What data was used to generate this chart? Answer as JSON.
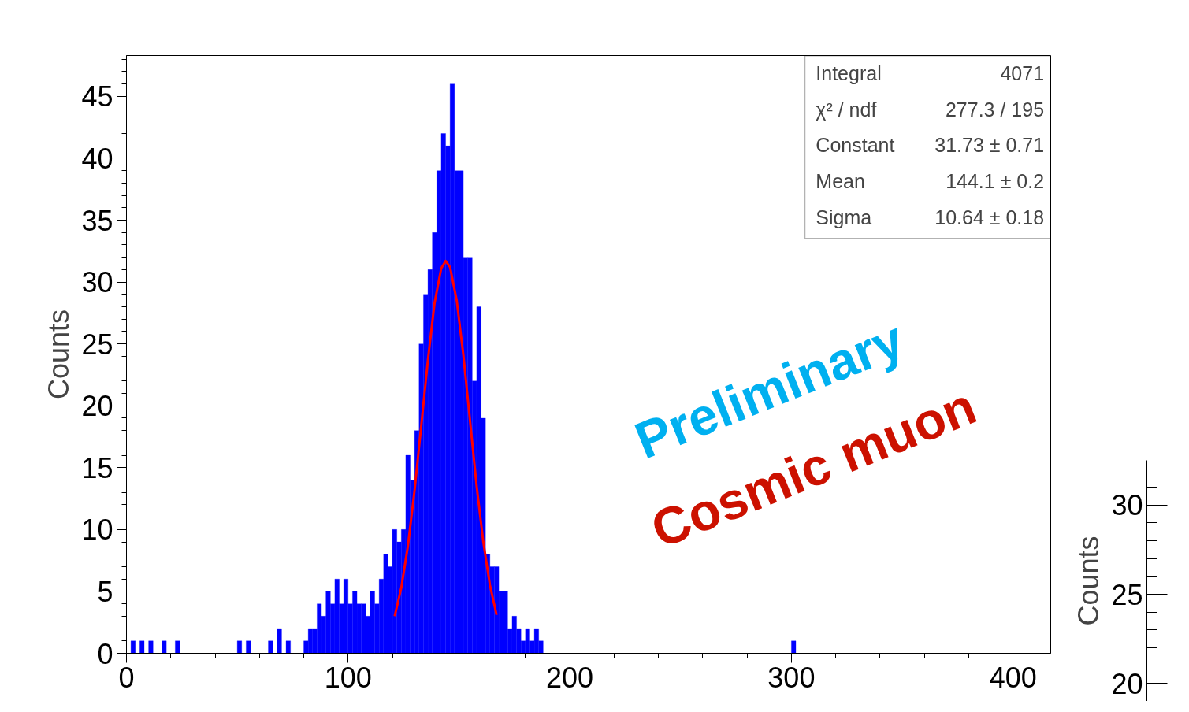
{
  "chart_data": [
    {
      "type": "histogram",
      "ylabel": "Counts",
      "xlim": [
        0,
        417
      ],
      "xticks": [
        0,
        100,
        200,
        300,
        400
      ],
      "ylim": [
        0,
        48.3
      ],
      "yticks": [
        0,
        5,
        10,
        15,
        20,
        25,
        30,
        35,
        40,
        45
      ],
      "grid": false,
      "bins": [
        0,
        2,
        4,
        6,
        8,
        10,
        12,
        14,
        16,
        18,
        20,
        22,
        24,
        26,
        28,
        30,
        32,
        34,
        36,
        38,
        40,
        42,
        44,
        46,
        48,
        50,
        52,
        54,
        56,
        58,
        60,
        62,
        64,
        66,
        68,
        70,
        72,
        74,
        76,
        78,
        80,
        82,
        84,
        86,
        88,
        90,
        92,
        94,
        96,
        98,
        100,
        102,
        104,
        106,
        108,
        110,
        112,
        114,
        116,
        118,
        120,
        122,
        124,
        126,
        128,
        130,
        132,
        134,
        136,
        138,
        140,
        142,
        144,
        146,
        148,
        150,
        152,
        154,
        156,
        158,
        160,
        162,
        164,
        166,
        168,
        170,
        172,
        174,
        176,
        178,
        180,
        182,
        184,
        186,
        188,
        190,
        192,
        194,
        196,
        198,
        200,
        202,
        204,
        206,
        208,
        210,
        212,
        214,
        216,
        218,
        220,
        222,
        224,
        226,
        228,
        230,
        232,
        234,
        236,
        238,
        240,
        242,
        244,
        246,
        248,
        250,
        252,
        254,
        256,
        258,
        260,
        262,
        264,
        266,
        268,
        270,
        272,
        274,
        276,
        278,
        280,
        282,
        284,
        286,
        288,
        290,
        292,
        294,
        296,
        298,
        300,
        302
      ],
      "values": [
        0,
        1,
        0,
        1,
        0,
        1,
        0,
        0,
        1,
        0,
        0,
        1,
        0,
        0,
        0,
        0,
        0,
        0,
        0,
        0,
        0,
        0,
        0,
        0,
        0,
        1,
        0,
        1,
        0,
        0,
        0,
        0,
        1,
        0,
        2,
        0,
        1,
        0,
        0,
        0,
        1,
        2,
        2,
        4,
        3,
        5,
        4,
        6,
        4,
        6,
        4,
        5,
        4,
        4,
        3,
        5,
        4,
        6,
        8,
        7,
        10,
        9,
        10,
        16,
        14,
        18,
        25,
        29,
        31,
        34,
        39,
        42,
        41,
        46,
        39,
        39,
        32,
        32,
        22,
        28,
        19,
        8,
        7,
        7,
        5,
        5,
        2,
        3,
        2,
        1,
        2,
        1,
        2,
        1,
        0,
        0,
        0,
        0,
        0,
        0,
        0,
        0,
        0,
        0,
        0,
        0,
        0,
        0,
        0,
        0,
        0,
        0,
        0,
        0,
        0,
        0,
        0,
        0,
        0,
        0,
        0,
        0,
        0,
        0,
        0,
        0,
        0,
        0,
        0,
        0,
        0,
        0,
        0,
        0,
        0,
        0,
        0,
        0,
        0,
        0,
        0,
        0,
        0,
        0,
        0,
        0,
        0,
        0,
        0,
        0,
        1
      ],
      "color": "#0000ff",
      "series": [
        {
          "type": "line",
          "color": "#ff0000",
          "x": [
            121,
            124,
            127,
            130,
            133,
            136,
            139,
            142,
            144,
            146,
            149,
            152,
            155,
            158,
            161,
            164,
            167
          ],
          "values": [
            3.0,
            5.3,
            8.7,
            13.2,
            18.4,
            23.7,
            28.3,
            31.1,
            31.7,
            31.2,
            28.5,
            24.1,
            18.8,
            13.5,
            9.0,
            5.5,
            3.1
          ]
        }
      ],
      "annotations": [
        "Integral",
        "4071",
        "χ² / ndf",
        "277.3 / 195",
        "Constant",
        "31.73 ± 0.71",
        "Mean",
        "144.1 ± 0.2",
        "Sigma",
        "10.64 ± 0.18",
        "Preliminary",
        "Cosmic muon"
      ]
    },
    {
      "type": "other",
      "ylabel": "Counts",
      "annotations": [
        "20",
        "25",
        "30"
      ]
    }
  ]
}
